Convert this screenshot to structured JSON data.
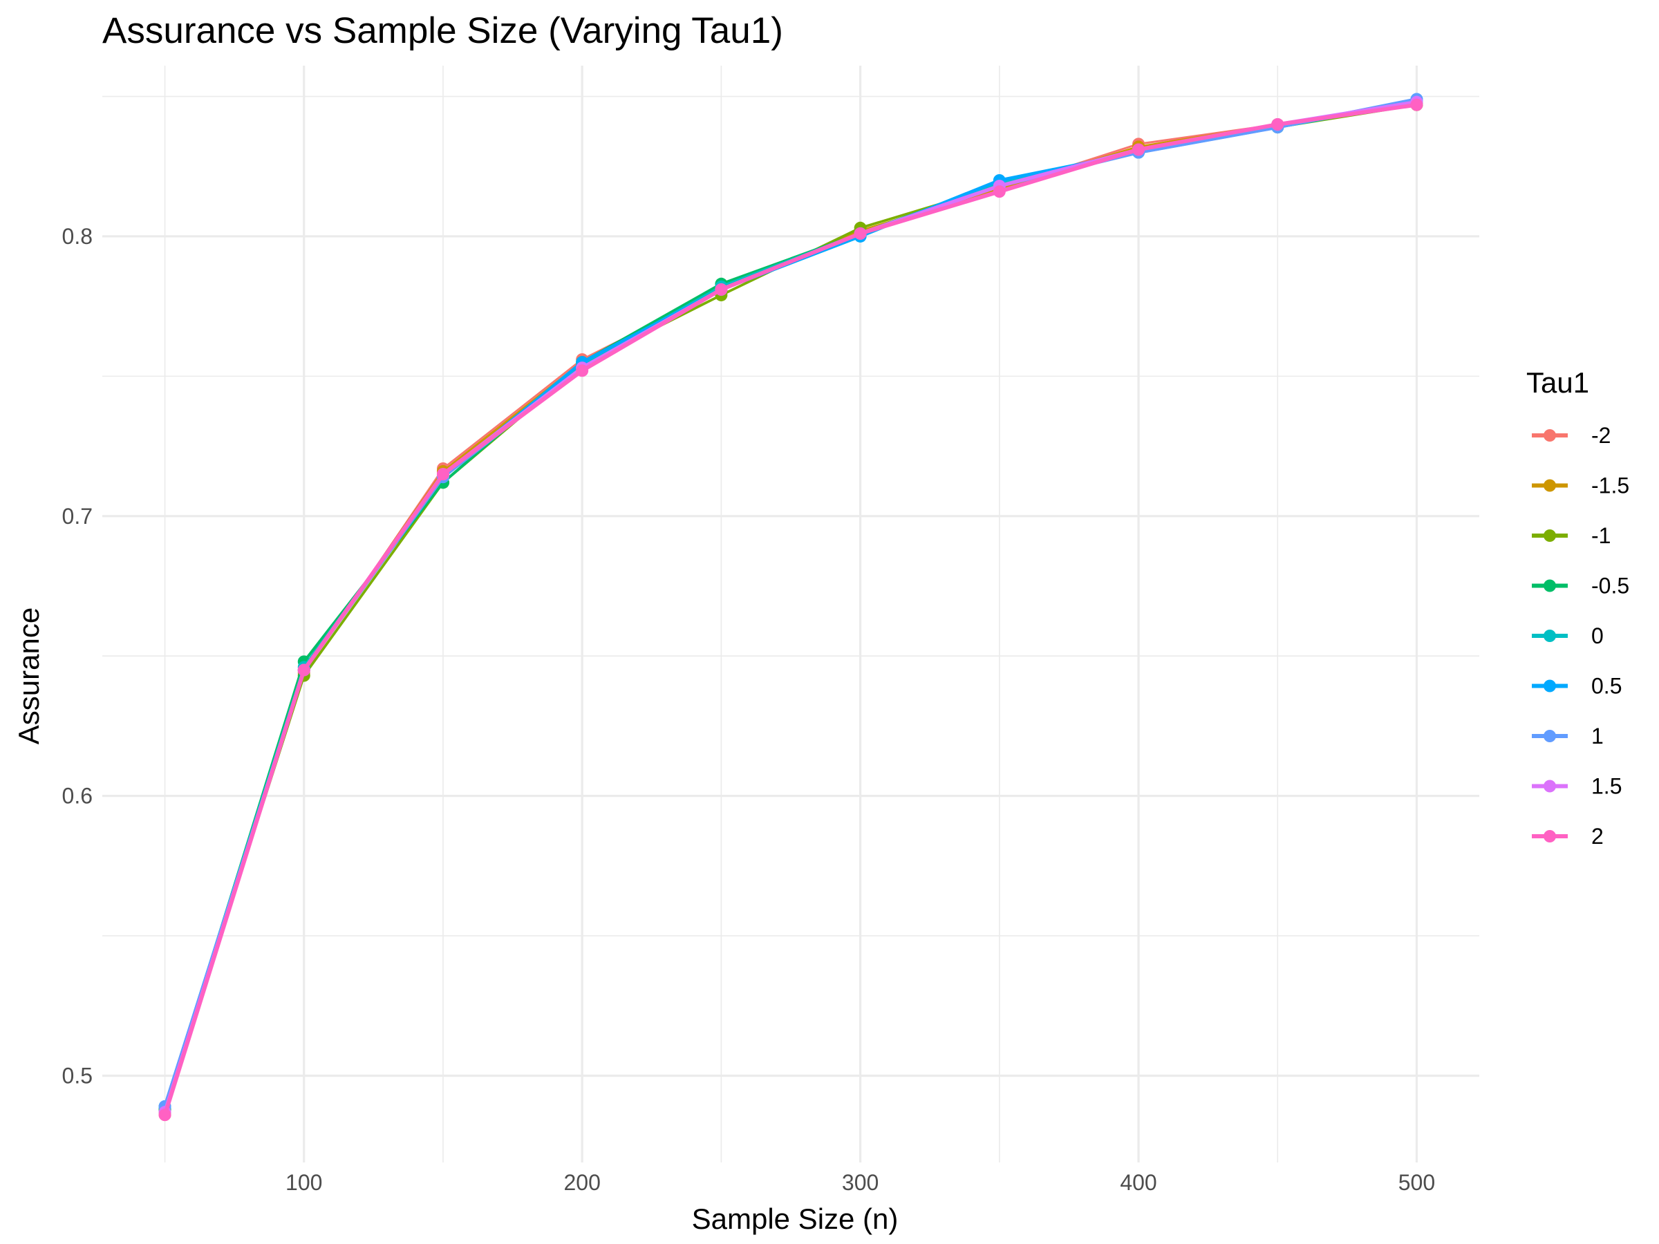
{
  "chart_data": {
    "type": "line",
    "title": "Assurance vs Sample Size (Varying Tau1)",
    "xlabel": "Sample Size (n)",
    "ylabel": "Assurance",
    "xlim": [
      27.5,
      522.5
    ],
    "ylim": [
      0.469,
      0.861
    ],
    "x_ticks": [
      100,
      200,
      300,
      400,
      500
    ],
    "y_ticks": [
      0.5,
      0.6,
      0.7,
      0.8
    ],
    "x_tick_labels": [
      "100",
      "200",
      "300",
      "400",
      "500"
    ],
    "y_tick_labels": [
      "0.5",
      "0.6",
      "0.7",
      "0.8"
    ],
    "grid": true,
    "legend": {
      "title": "Tau1",
      "position": "right"
    },
    "x": [
      50,
      100,
      150,
      200,
      250,
      300,
      350,
      400,
      450,
      500
    ],
    "series": [
      {
        "name": "-2",
        "color": "#F8766D",
        "values": [
          0.486,
          0.644,
          0.717,
          0.756,
          0.781,
          0.801,
          0.817,
          0.833,
          0.84,
          0.847
        ]
      },
      {
        "name": "-1.5",
        "color": "#CD9600",
        "values": [
          0.487,
          0.645,
          0.716,
          0.755,
          0.781,
          0.802,
          0.817,
          0.832,
          0.84,
          0.847
        ]
      },
      {
        "name": "-1",
        "color": "#7CAE00",
        "values": [
          0.488,
          0.643,
          0.712,
          0.754,
          0.779,
          0.803,
          0.818,
          0.831,
          0.839,
          0.847
        ]
      },
      {
        "name": "-0.5",
        "color": "#00BE67",
        "values": [
          0.488,
          0.648,
          0.712,
          0.755,
          0.783,
          0.801,
          0.818,
          0.83,
          0.839,
          0.848
        ]
      },
      {
        "name": "0",
        "color": "#00BFC4",
        "values": [
          0.489,
          0.646,
          0.714,
          0.754,
          0.782,
          0.801,
          0.819,
          0.83,
          0.839,
          0.848
        ]
      },
      {
        "name": "0.5",
        "color": "#00A9FF",
        "values": [
          0.489,
          0.645,
          0.714,
          0.755,
          0.781,
          0.8,
          0.82,
          0.83,
          0.839,
          0.849
        ]
      },
      {
        "name": "1",
        "color": "#619CFF",
        "values": [
          0.489,
          0.645,
          0.714,
          0.753,
          0.781,
          0.801,
          0.818,
          0.83,
          0.839,
          0.849
        ]
      },
      {
        "name": "1.5",
        "color": "#DB72FB",
        "values": [
          0.487,
          0.645,
          0.715,
          0.753,
          0.781,
          0.801,
          0.818,
          0.831,
          0.84,
          0.848
        ]
      },
      {
        "name": "2",
        "color": "#FF61C3",
        "values": [
          0.486,
          0.645,
          0.715,
          0.752,
          0.781,
          0.801,
          0.816,
          0.831,
          0.84,
          0.847
        ]
      }
    ]
  }
}
